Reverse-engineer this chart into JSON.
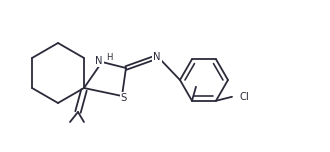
{
  "bg": "#ffffff",
  "lc": "#2a2a3a",
  "lw": 1.3,
  "fs": 7.2,
  "figsize": [
    3.3,
    1.52
  ],
  "dpi": 100,
  "xlim": [
    0,
    330
  ],
  "ylim": [
    0,
    152
  ]
}
